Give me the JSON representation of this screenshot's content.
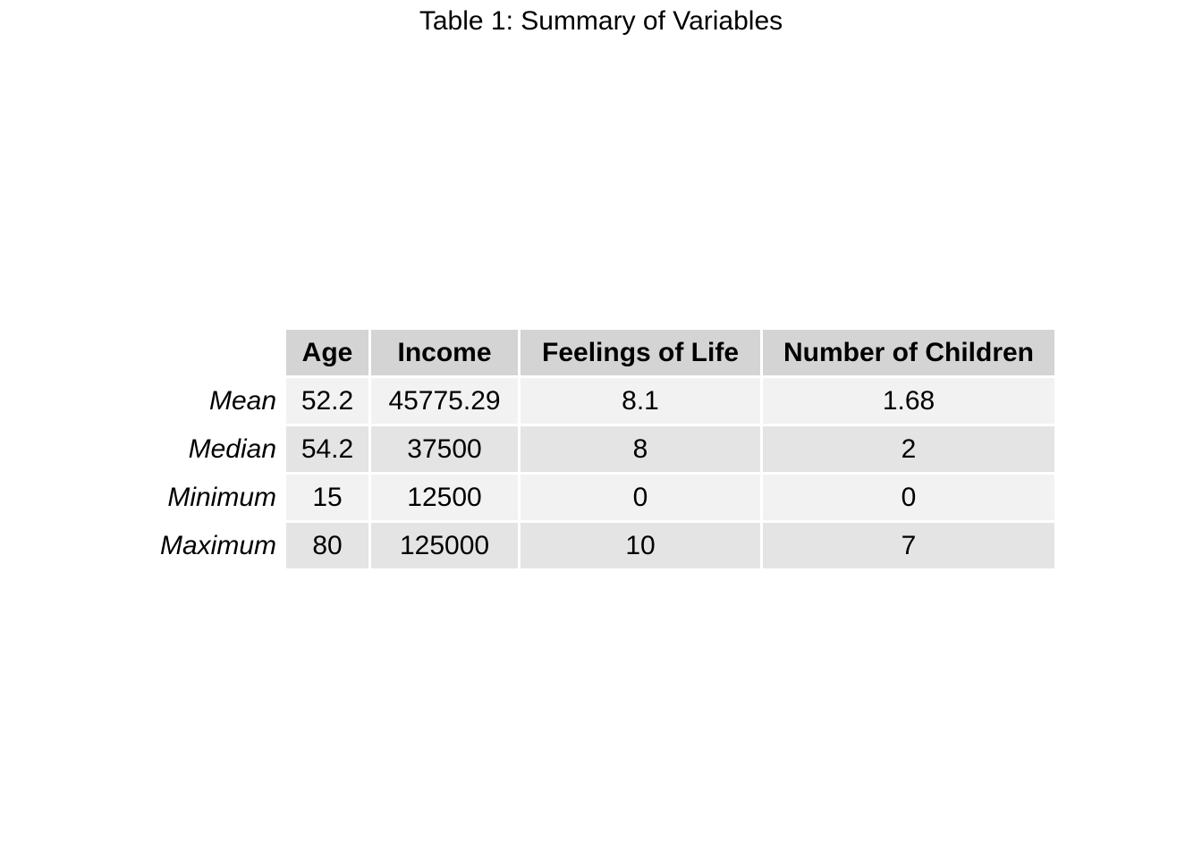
{
  "chart_data": {
    "type": "table",
    "title": "Table 1: Summary of Variables",
    "columns": [
      "Age",
      "Income",
      "Feelings of Life",
      "Number of Children"
    ],
    "rows": [
      {
        "label": "Mean",
        "values": [
          "52.2",
          "45775.29",
          "8.1",
          "1.68"
        ]
      },
      {
        "label": "Median",
        "values": [
          "54.2",
          "37500",
          "8",
          "2"
        ]
      },
      {
        "label": "Minimum",
        "values": [
          "15",
          "12500",
          "0",
          "0"
        ]
      },
      {
        "label": "Maximum",
        "values": [
          "80",
          "125000",
          "10",
          "7"
        ]
      }
    ]
  },
  "colors": {
    "header_background": "#d4d4d4",
    "row_light": "#f2f2f2",
    "row_dark": "#e4e4e4"
  }
}
